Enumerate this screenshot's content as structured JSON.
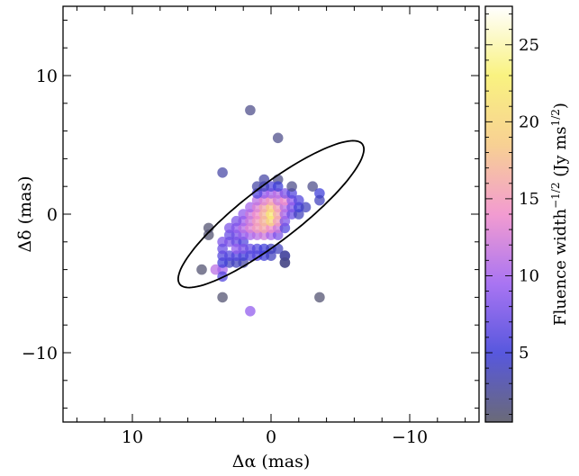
{
  "chart_data": {
    "type": "scatter",
    "xlabel": "Δα (mas)",
    "ylabel": "Δδ (mas)",
    "xlim": [
      15,
      -15
    ],
    "ylim": [
      -15,
      15
    ],
    "x_ticks": [
      10,
      0,
      -10
    ],
    "x_tick_labels": [
      "10",
      "0",
      "−10"
    ],
    "y_ticks": [
      10,
      0,
      -10
    ],
    "y_tick_labels": [
      "10",
      "0",
      "−10"
    ],
    "grid": false,
    "colorbar": {
      "label": "Fluence width⁻¹ᐟ² (Jy ms¹ᐟ²)",
      "label_main": "Fluence width",
      "label_exp1": "−1/2",
      "label_mid": " (Jy ms",
      "label_exp2": "1/2",
      "label_end": ")",
      "range": [
        0.5,
        27.5
      ],
      "ticks": [
        5,
        10,
        15,
        20,
        25
      ],
      "tick_labels": [
        "5",
        "10",
        "15",
        "20",
        "25"
      ],
      "colormap": [
        "#505060",
        "#3a3ad8",
        "#9a5cf0",
        "#f08ac8",
        "#f6c880",
        "#f8f06a",
        "#ffffff"
      ]
    },
    "ellipse": {
      "center": [
        0,
        0
      ],
      "semi_major": 8.3,
      "semi_minor": 2.0,
      "angle_deg": 37.5
    },
    "points": [
      {
        "x": 1.5,
        "y": 7.5,
        "c": 2
      },
      {
        "x": -0.5,
        "y": 5.5,
        "c": 2
      },
      {
        "x": 3.5,
        "y": 3.0,
        "c": 3
      },
      {
        "x": -0.5,
        "y": 2.5,
        "c": 2
      },
      {
        "x": -3.0,
        "y": 2.0,
        "c": 2
      },
      {
        "x": -3.5,
        "y": 1.5,
        "c": 5
      },
      {
        "x": -3.5,
        "y": 1.0,
        "c": 4
      },
      {
        "x": 4.5,
        "y": -1.0,
        "c": 1
      },
      {
        "x": 4.5,
        "y": -1.5,
        "c": 1
      },
      {
        "x": 5.0,
        "y": -4.0,
        "c": 1
      },
      {
        "x": 4.0,
        "y": -4.0,
        "c": 11
      },
      {
        "x": 3.5,
        "y": -4.0,
        "c": 10
      },
      {
        "x": 3.5,
        "y": -4.5,
        "c": 6
      },
      {
        "x": 3.5,
        "y": -6.0,
        "c": 1
      },
      {
        "x": 1.5,
        "y": -7.0,
        "c": 9
      },
      {
        "x": -3.5,
        "y": -6.0,
        "c": 1
      },
      {
        "x": -1.0,
        "y": -3.0,
        "c": 2
      },
      {
        "x": -1.0,
        "y": -3.5,
        "c": 2
      },
      {
        "x": 2.0,
        "y": -3.5,
        "c": 3
      },
      {
        "x": 2.5,
        "y": -3.5,
        "c": 4
      },
      {
        "x": 3.0,
        "y": -3.5,
        "c": 4
      },
      {
        "x": 3.5,
        "y": -3.5,
        "c": 5
      },
      {
        "x": 2.0,
        "y": -3.0,
        "c": 5
      },
      {
        "x": 2.5,
        "y": -3.0,
        "c": 6
      },
      {
        "x": 3.0,
        "y": -3.0,
        "c": 6
      },
      {
        "x": 3.5,
        "y": -3.0,
        "c": 6
      },
      {
        "x": 3.5,
        "y": -2.0,
        "c": 8
      },
      {
        "x": 3.0,
        "y": -2.0,
        "c": 8
      },
      {
        "x": 2.5,
        "y": -2.0,
        "c": 7
      },
      {
        "x": 2.0,
        "y": -2.0,
        "c": 6
      },
      {
        "x": 3.5,
        "y": -2.5,
        "c": 7
      },
      {
        "x": 2.5,
        "y": -2.5,
        "c": 9
      },
      {
        "x": 2.0,
        "y": -2.5,
        "c": 8
      },
      {
        "x": 1.5,
        "y": -2.5,
        "c": 7
      },
      {
        "x": 1.0,
        "y": -2.5,
        "c": 6
      },
      {
        "x": 0.5,
        "y": -2.5,
        "c": 5
      },
      {
        "x": 0.0,
        "y": -2.5,
        "c": 4
      },
      {
        "x": -0.5,
        "y": -2.5,
        "c": 4
      },
      {
        "x": 1.5,
        "y": -3.0,
        "c": 6
      },
      {
        "x": 1.0,
        "y": -3.0,
        "c": 6
      },
      {
        "x": 0.5,
        "y": -3.0,
        "c": 5
      },
      {
        "x": 0.0,
        "y": -3.0,
        "c": 4
      },
      {
        "x": 2.5,
        "y": -1.5,
        "c": 8
      },
      {
        "x": 2.0,
        "y": -1.5,
        "c": 9
      },
      {
        "x": 1.5,
        "y": -1.5,
        "c": 10
      },
      {
        "x": 1.0,
        "y": -1.5,
        "c": 11
      },
      {
        "x": 0.5,
        "y": -1.5,
        "c": 12
      },
      {
        "x": 0.0,
        "y": -1.5,
        "c": 10
      },
      {
        "x": -0.5,
        "y": -1.5,
        "c": 8
      },
      {
        "x": 3.0,
        "y": -1.5,
        "c": 7
      },
      {
        "x": 2.5,
        "y": -1.0,
        "c": 9
      },
      {
        "x": 2.0,
        "y": -1.0,
        "c": 11
      },
      {
        "x": 1.5,
        "y": -1.0,
        "c": 13
      },
      {
        "x": 1.0,
        "y": -1.0,
        "c": 15
      },
      {
        "x": 0.5,
        "y": -1.0,
        "c": 16
      },
      {
        "x": 0.0,
        "y": -1.0,
        "c": 14
      },
      {
        "x": -0.5,
        "y": -1.0,
        "c": 12
      },
      {
        "x": -1.0,
        "y": -1.0,
        "c": 6
      },
      {
        "x": 3.0,
        "y": -1.0,
        "c": 8
      },
      {
        "x": 2.0,
        "y": -0.5,
        "c": 10
      },
      {
        "x": 1.5,
        "y": -0.5,
        "c": 12
      },
      {
        "x": 1.0,
        "y": -0.5,
        "c": 15
      },
      {
        "x": 0.5,
        "y": -0.5,
        "c": 17
      },
      {
        "x": 0.0,
        "y": -0.5,
        "c": 20
      },
      {
        "x": -0.5,
        "y": -0.5,
        "c": 15
      },
      {
        "x": -1.0,
        "y": -0.5,
        "c": 8
      },
      {
        "x": 2.5,
        "y": -0.5,
        "c": 8
      },
      {
        "x": 2.0,
        "y": 0.0,
        "c": 9
      },
      {
        "x": 1.5,
        "y": 0.0,
        "c": 12
      },
      {
        "x": 1.0,
        "y": 0.0,
        "c": 14
      },
      {
        "x": 0.5,
        "y": 0.0,
        "c": 17
      },
      {
        "x": 0.0,
        "y": 0.0,
        "c": 22
      },
      {
        "x": -0.5,
        "y": 0.0,
        "c": 16
      },
      {
        "x": -1.0,
        "y": 0.0,
        "c": 10
      },
      {
        "x": -1.5,
        "y": 0.0,
        "c": 7
      },
      {
        "x": -2.0,
        "y": 0.0,
        "c": 4
      },
      {
        "x": 1.5,
        "y": 0.5,
        "c": 10
      },
      {
        "x": 1.0,
        "y": 0.5,
        "c": 13
      },
      {
        "x": 0.5,
        "y": 0.5,
        "c": 16
      },
      {
        "x": 0.0,
        "y": 0.5,
        "c": 19
      },
      {
        "x": -0.5,
        "y": 0.5,
        "c": 15
      },
      {
        "x": -1.0,
        "y": 0.5,
        "c": 11
      },
      {
        "x": -1.5,
        "y": 0.5,
        "c": 8
      },
      {
        "x": -2.0,
        "y": 0.5,
        "c": 5
      },
      {
        "x": -2.5,
        "y": 0.5,
        "c": 4
      },
      {
        "x": 1.0,
        "y": 1.0,
        "c": 11
      },
      {
        "x": 0.5,
        "y": 1.0,
        "c": 13
      },
      {
        "x": 0.0,
        "y": 1.0,
        "c": 15
      },
      {
        "x": -0.5,
        "y": 1.0,
        "c": 12
      },
      {
        "x": -1.0,
        "y": 1.0,
        "c": 14
      },
      {
        "x": -1.5,
        "y": 1.0,
        "c": 9
      },
      {
        "x": -2.0,
        "y": 1.0,
        "c": 6
      },
      {
        "x": 0.5,
        "y": 1.5,
        "c": 9
      },
      {
        "x": 0.0,
        "y": 1.5,
        "c": 10
      },
      {
        "x": -0.5,
        "y": 1.5,
        "c": 11
      },
      {
        "x": -1.0,
        "y": 1.5,
        "c": 8
      },
      {
        "x": -1.5,
        "y": 1.5,
        "c": 6
      },
      {
        "x": 1.0,
        "y": 1.5,
        "c": 6
      },
      {
        "x": 0.0,
        "y": 2.0,
        "c": 6
      },
      {
        "x": 0.5,
        "y": 2.0,
        "c": 4
      },
      {
        "x": -0.5,
        "y": 2.0,
        "c": 5
      },
      {
        "x": 1.0,
        "y": 2.0,
        "c": 3
      },
      {
        "x": -1.5,
        "y": 2.0,
        "c": 2
      },
      {
        "x": 0.5,
        "y": 2.5,
        "c": 3
      },
      {
        "x": -1.0,
        "y": -3.0,
        "c": 3
      },
      {
        "x": -1.0,
        "y": -3.5,
        "c": 2
      }
    ]
  }
}
